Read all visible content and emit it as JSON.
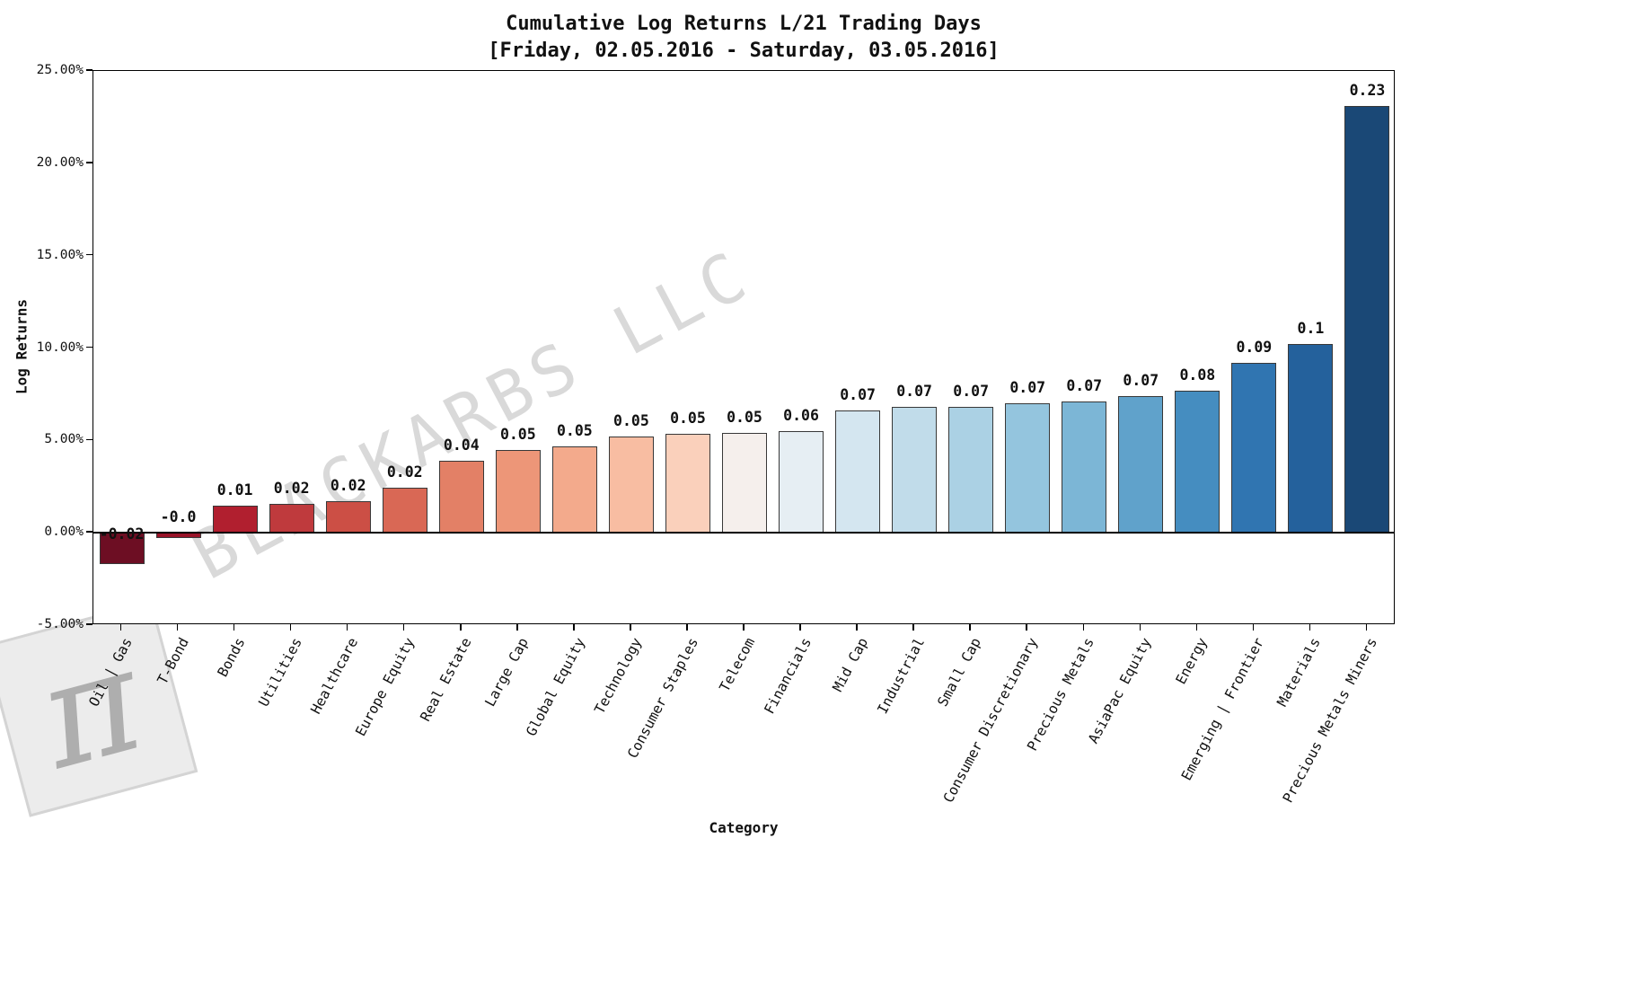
{
  "watermark": {
    "text": "BLACKARBS LLC",
    "logo_glyph": "π"
  },
  "chart_data": {
    "type": "bar",
    "title": "Cumulative Log Returns L/21 Trading Days",
    "subtitle": "[Friday, 02.05.2016 - Saturday, 03.05.2016]",
    "xlabel": "Category",
    "ylabel": "Log Returns",
    "ylim": [
      -0.05,
      0.25
    ],
    "grid": false,
    "legend": null,
    "y_ticks": {
      "values": [
        0.25,
        0.2,
        0.15,
        0.1,
        0.05,
        0.0,
        -0.05
      ],
      "labels": [
        "25.00%",
        "20.00%",
        "15.00%",
        "10.00%",
        "5.00%",
        "0.00%",
        "-5.00%"
      ]
    },
    "categories": [
      "Oil | Gas",
      "T-Bond",
      "Bonds",
      "Utilities",
      "Healthcare",
      "Europe Equity",
      "Real Estate",
      "Large Cap",
      "Global Equity",
      "Technology",
      "Consumer Staples",
      "Telecom",
      "Financials",
      "Mid Cap",
      "Industrial",
      "Small Cap",
      "Consumer Discretionary",
      "Precious Metals",
      "AsiaPac Equity",
      "Energy",
      "Emerging | Frontier",
      "Materials",
      "Precious Metals Miners"
    ],
    "values": [
      -0.017,
      -0.003,
      0.0145,
      0.0155,
      0.017,
      0.0245,
      0.039,
      0.045,
      0.047,
      0.052,
      0.0535,
      0.054,
      0.055,
      0.066,
      0.068,
      0.068,
      0.07,
      0.071,
      0.074,
      0.077,
      0.092,
      0.102,
      0.231
    ],
    "bar_labels": [
      "-0.02",
      "-0.0",
      "0.01",
      "0.02",
      "0.02",
      "0.02",
      "0.04",
      "0.05",
      "0.05",
      "0.05",
      "0.05",
      "0.05",
      "0.06",
      "0.07",
      "0.07",
      "0.07",
      "0.07",
      "0.07",
      "0.07",
      "0.08",
      "0.09",
      "0.1",
      "0.23"
    ],
    "colors": [
      "#6d0e23",
      "#981328",
      "#b11f2f",
      "#bf3a3d",
      "#cc4f45",
      "#d96855",
      "#e38066",
      "#ed9678",
      "#f3aa8c",
      "#f8bda2",
      "#fad0bb",
      "#f5efec",
      "#e6eef3",
      "#d4e6f0",
      "#c1dcea",
      "#abd1e4",
      "#94c5de",
      "#7cb6d6",
      "#60a2cb",
      "#458dc0",
      "#3075b1",
      "#24619c",
      "#1a4876"
    ]
  }
}
